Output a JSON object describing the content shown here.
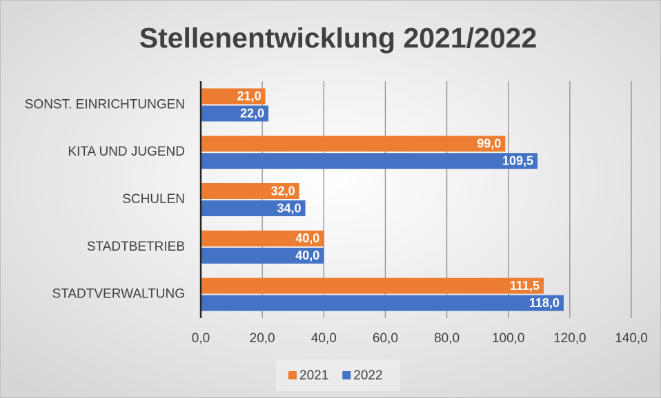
{
  "chart_data": {
    "type": "bar",
    "orientation": "horizontal",
    "title": "Stellenentwicklung 2021/2022",
    "categories": [
      "SONST. EINRICHTUNGEN",
      "KITA UND JUGEND",
      "SCHULEN",
      "STADTBETRIEB",
      "STADTVERWALTUNG"
    ],
    "series": [
      {
        "name": "2021",
        "color": "#ED7D31",
        "values": [
          21,
          99,
          32,
          40,
          111.5
        ],
        "value_labels": [
          "21,0",
          "99,0",
          "32,0",
          "40,0",
          "111,5"
        ]
      },
      {
        "name": "2022",
        "color": "#4472C4",
        "values": [
          22,
          109.5,
          34,
          40,
          118
        ],
        "value_labels": [
          "22,0",
          "109,5",
          "34,0",
          "40,0",
          "118,0"
        ]
      }
    ],
    "xlim": [
      0,
      140
    ],
    "xticks": [
      {
        "value": 0,
        "label": "0,0"
      },
      {
        "value": 20,
        "label": "20,0"
      },
      {
        "value": 40,
        "label": "40,0"
      },
      {
        "value": 60,
        "label": "60,0"
      },
      {
        "value": 80,
        "label": "80,0"
      },
      {
        "value": 100,
        "label": "100,0"
      },
      {
        "value": 120,
        "label": "120,0"
      },
      {
        "value": 140,
        "label": "140,0"
      }
    ],
    "grid": true,
    "legend": "bottom"
  }
}
